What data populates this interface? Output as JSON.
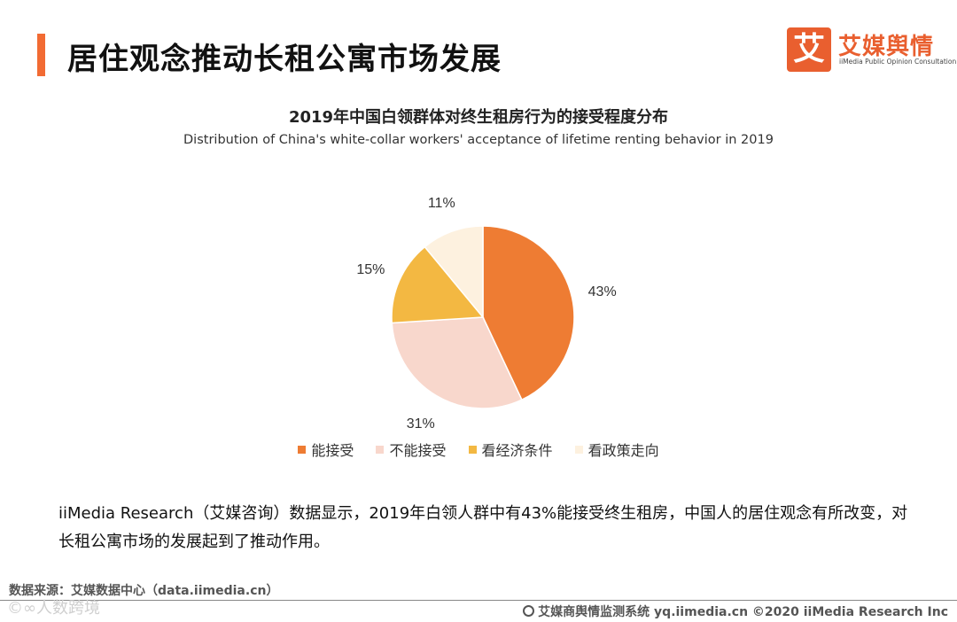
{
  "header": {
    "title": "居住观念推动长租公寓市场发展",
    "accent_color": "#f26b33"
  },
  "logo": {
    "mark": "艾",
    "name": "艾媒舆情",
    "subtitle": "iiMedia Public Opinion Consultation",
    "color": "#e95f2f"
  },
  "chart_data": {
    "type": "pie",
    "title": "2019年中国白领群体对终生租房行为的接受程度分布",
    "subtitle": "Distribution of China's white-collar workers' acceptance of lifetime renting behavior in 2019",
    "categories": [
      "能接受",
      "不能接受",
      "看经济条件",
      "看政策走向"
    ],
    "values": [
      43,
      31,
      15,
      11
    ],
    "value_labels": [
      "43%",
      "31%",
      "15%",
      "11%"
    ],
    "colors": [
      "#ee7c33",
      "#f8d7cc",
      "#f3b842",
      "#fdf1df"
    ],
    "legend_position": "bottom"
  },
  "body": {
    "paragraph": "iiMedia Research（艾媒咨询）数据显示，2019年白领人群中有43%能接受终生租房，中国人的居住观念有所改变，对长租公寓市场的发展起到了推动作用。"
  },
  "footer": {
    "source": "数据来源：艾媒数据中心（data.iimedia.cn）",
    "watermark": "©∞人数跨境",
    "copyright": "艾媒商舆情监测系统 yq.iimedia.cn  ©2020  iiMedia Research  Inc"
  }
}
